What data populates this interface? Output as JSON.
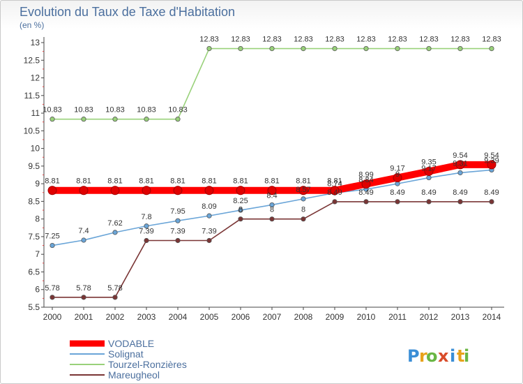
{
  "title": "Evolution du Taux de Taxe d'Habitation",
  "unit_label": "(en %)",
  "logo": {
    "letters": [
      "P",
      "r",
      "o",
      "x",
      "i",
      "t",
      "i"
    ],
    "colors": [
      "#3a8ed6",
      "#e8a21a",
      "#69b644",
      "#d94c2a",
      "#3a8ed6",
      "#e8a21a",
      "#69b644"
    ]
  },
  "chart_data": {
    "type": "line",
    "title": "Evolution du Taux de Taxe d'Habitation",
    "ylabel": "(en %)",
    "xlabel": "",
    "x": [
      "2000",
      "2001",
      "2002",
      "2003",
      "2004",
      "2005",
      "2006",
      "2007",
      "2008",
      "2009",
      "2010",
      "2011",
      "2012",
      "2013",
      "2014"
    ],
    "ylim": [
      5.5,
      13
    ],
    "yticks": [
      "5.5",
      "6",
      "6.5",
      "7",
      "7.5",
      "8",
      "8.5",
      "9",
      "9.5",
      "10",
      "10.5",
      "11",
      "11.5",
      "12",
      "12.5",
      "13"
    ],
    "grid": false,
    "legend": "bottom-left",
    "series": [
      {
        "name": "VODABLE",
        "color": "#ff0000",
        "values": [
          8.81,
          8.81,
          8.81,
          8.81,
          8.81,
          8.81,
          8.81,
          8.81,
          8.81,
          8.81,
          8.99,
          9.17,
          9.35,
          9.54,
          9.54
        ],
        "labels": [
          "8.81",
          "8.81",
          "8.81",
          "8.81",
          "8.81",
          "8.81",
          "8.81",
          "8.81",
          "8.81",
          "8.81",
          "8.99",
          "9.17",
          "9.35",
          "9.54",
          "9.54"
        ]
      },
      {
        "name": "Solignat",
        "color": "#6aa5d8",
        "values": [
          7.25,
          7.4,
          7.62,
          7.8,
          7.95,
          8.09,
          8.25,
          8.4,
          8.57,
          8.74,
          8.84,
          9.0,
          9.17,
          9.31,
          9.39
        ],
        "labels": [
          "7.25",
          "7.4",
          "7.62",
          "7.8",
          "7.95",
          "8.09",
          "8.25",
          "8.4",
          "8.57",
          "8.74",
          "8.84",
          "9",
          "9.17",
          "9.31",
          "9.39"
        ]
      },
      {
        "name": "Tourzel-Ronzières",
        "color": "#99d17a",
        "values": [
          10.83,
          10.83,
          10.83,
          10.83,
          10.83,
          12.83,
          12.83,
          12.83,
          12.83,
          12.83,
          12.83,
          12.83,
          12.83,
          12.83,
          12.83
        ],
        "labels": [
          "10.83",
          "10.83",
          "10.83",
          "10.83",
          "10.83",
          "12.83",
          "12.83",
          "12.83",
          "12.83",
          "12.83",
          "12.83",
          "12.83",
          "12.83",
          "12.83",
          "12.83"
        ]
      },
      {
        "name": "Mareugheol",
        "color": "#7a3535",
        "values": [
          5.78,
          5.78,
          5.78,
          7.39,
          7.39,
          7.39,
          8,
          8,
          8,
          8.49,
          8.49,
          8.49,
          8.49,
          8.49,
          8.49
        ],
        "labels": [
          "5.78",
          "5.78",
          "5.78",
          "7.39",
          "7.39",
          "7.39",
          "8",
          "8",
          "8",
          "8.49",
          "8.49",
          "8.49",
          "8.49",
          "8.49",
          "8.49"
        ]
      }
    ]
  }
}
